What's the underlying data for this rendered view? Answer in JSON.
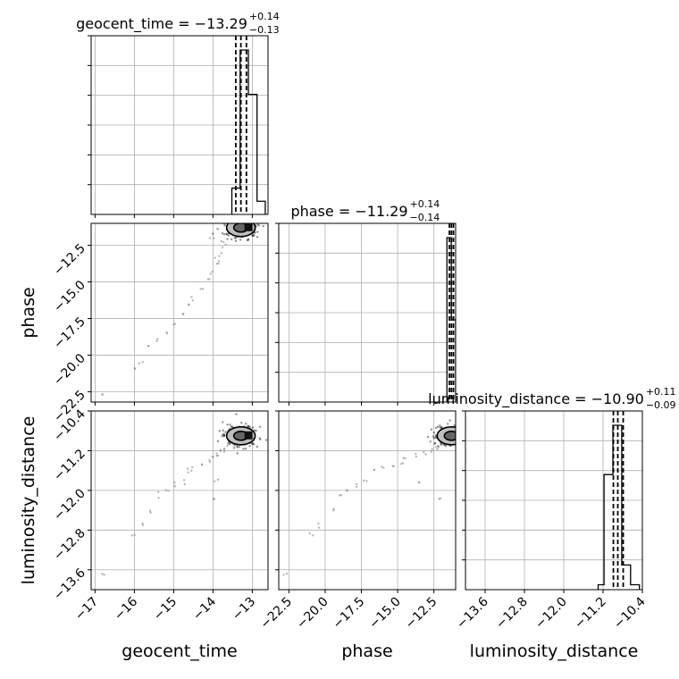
{
  "chart_data": {
    "type": "corner",
    "grid": true,
    "parameters": [
      {
        "name": "geocent_time",
        "axis_label": "geocent_time",
        "title_lhs": "geocent_time = −13.29",
        "title_sup": "+0.14",
        "title_sub": "−0.13",
        "range": [
          -17.1,
          -12.6
        ],
        "ticks": [
          -17,
          -16,
          -15,
          -14,
          -13
        ],
        "tick_labels": [
          "−17",
          "−16",
          "−15",
          "−14",
          "−13"
        ],
        "quantiles": [
          -13.42,
          -13.29,
          -13.15
        ],
        "hist": {
          "edges": [
            -13.52,
            -13.31,
            -13.1,
            -12.88,
            -12.67
          ],
          "counts": [
            0.16,
            1.0,
            0.73,
            0.08
          ]
        }
      },
      {
        "name": "phase",
        "axis_label": "phase",
        "title_lhs": "phase = −11.29",
        "title_sup": "+0.14",
        "title_sub": "−0.14",
        "range": [
          -23.2,
          -11.0
        ],
        "ticks": [
          -22.5,
          -20.0,
          -17.5,
          -15.0,
          -12.5
        ],
        "tick_labels": [
          "−22.5",
          "−20.0",
          "−17.5",
          "−15.0",
          "−12.5"
        ],
        "quantiles": [
          -11.43,
          -11.29,
          -11.15
        ],
        "hist": {
          "edges": [
            -11.6,
            -11.3,
            -11.0
          ],
          "counts": [
            1.0,
            0.5
          ]
        }
      },
      {
        "name": "luminosity_distance",
        "axis_label": "luminosity_distance",
        "title_lhs": "luminosity_distance = −10.90",
        "title_sup": "+0.11",
        "title_sub": "−0.09",
        "range": [
          -14.0,
          -10.4
        ],
        "ticks": [
          -13.6,
          -12.8,
          -12.0,
          -11.2,
          -10.4
        ],
        "tick_labels": [
          "−13.6",
          "−12.8",
          "−12.0",
          "−11.2",
          "−10.4"
        ],
        "quantiles": [
          -10.99,
          -10.9,
          -10.79
        ],
        "hist": {
          "edges": [
            -11.3,
            -11.18,
            -11.0,
            -10.82,
            -10.64,
            -10.46
          ],
          "counts": [
            0.03,
            0.7,
            1.0,
            0.15,
            0.03
          ]
        }
      }
    ],
    "scatter_core": [
      [
        -13.29,
        -11.29,
        -10.9
      ]
    ],
    "scatter_tail": [
      [
        -16.8,
        -22.8,
        -13.7
      ],
      [
        -16.0,
        -20.9,
        -12.9
      ],
      [
        -15.8,
        -20.5,
        -12.7
      ],
      [
        -15.6,
        -19.4,
        -12.4
      ],
      [
        -15.4,
        -18.9,
        -12.1
      ],
      [
        -15.2,
        -18.5,
        -12.0
      ],
      [
        -15.0,
        -17.8,
        -11.9
      ],
      [
        -14.8,
        -17.3,
        -11.8
      ],
      [
        -14.6,
        -16.6,
        -11.6
      ],
      [
        -14.5,
        -16.0,
        -11.55
      ],
      [
        -14.3,
        -15.3,
        -11.5
      ],
      [
        -14.1,
        -14.8,
        -11.45
      ],
      [
        -14.0,
        -14.5,
        -11.35
      ],
      [
        -13.9,
        -13.8,
        -11.3
      ],
      [
        -13.8,
        -13.1,
        -11.25
      ],
      [
        -13.7,
        -12.6,
        -11.2
      ],
      [
        -13.75,
        -12.3,
        -11.15
      ],
      [
        -13.6,
        -12.0,
        -11.1
      ],
      [
        -14.0,
        -12.0,
        -12.2
      ],
      [
        -13.9,
        -13.5,
        -11.8
      ]
    ]
  }
}
